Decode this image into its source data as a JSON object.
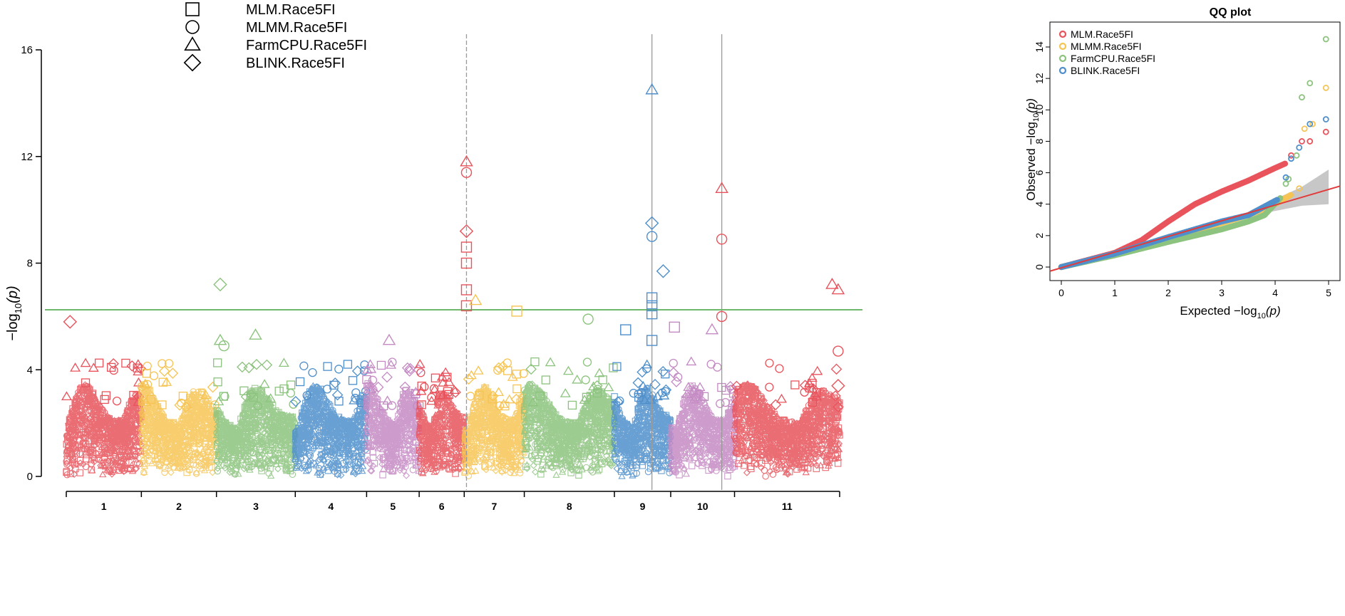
{
  "chart_data": [
    {
      "type": "scatter",
      "subtype": "manhattan",
      "title": "",
      "ylabel": "-log10(p)",
      "ylabel_main": "−log",
      "ylabel_sub": "10",
      "ylabel_end": "(p)",
      "xlabel": "",
      "ylim": [
        0,
        16
      ],
      "yticks": [
        "0",
        "4",
        "8",
        "12",
        "16"
      ],
      "ytick_values": [
        0,
        4,
        8,
        12,
        16
      ],
      "threshold": 6.25,
      "threshold_color": "#6DB86B",
      "chromosomes": [
        {
          "label": "1",
          "start": 0,
          "end": 1.0,
          "color": "#E8535C"
        },
        {
          "label": "2",
          "start": 1.0,
          "end": 2.0,
          "color": "#F6C453"
        },
        {
          "label": "3",
          "start": 2.0,
          "end": 3.05,
          "color": "#8CC37E"
        },
        {
          "label": "4",
          "start": 3.05,
          "end": 4.0,
          "color": "#4F8FCB"
        },
        {
          "label": "5",
          "start": 4.0,
          "end": 4.7,
          "color": "#C48AC3"
        },
        {
          "label": "6",
          "start": 4.7,
          "end": 5.3,
          "color": "#E8535C"
        },
        {
          "label": "7",
          "start": 5.3,
          "end": 6.1,
          "color": "#F6C453"
        },
        {
          "label": "8",
          "start": 6.1,
          "end": 7.3,
          "color": "#8CC37E"
        },
        {
          "label": "9",
          "start": 7.3,
          "end": 8.05,
          "color": "#4F8FCB"
        },
        {
          "label": "10",
          "start": 8.05,
          "end": 8.9,
          "color": "#C48AC3"
        },
        {
          "label": "11",
          "start": 8.9,
          "end": 10.3,
          "color": "#E8535C"
        }
      ],
      "vertical_lines": [
        {
          "x": 5.33,
          "style": "dashed"
        },
        {
          "x": 7.8,
          "style": "solid"
        },
        {
          "x": 8.73,
          "style": "solid"
        }
      ],
      "legend": [
        {
          "label": "MLM.Race5FI",
          "marker": "square"
        },
        {
          "label": "MLMM.Race5FI",
          "marker": "circle"
        },
        {
          "label": "FarmCPU.Race5FI",
          "marker": "triangle"
        },
        {
          "label": "BLINK.Race5FI",
          "marker": "diamond"
        }
      ],
      "highlight_points": [
        {
          "x": 0.05,
          "y": 5.8,
          "marker": "diamond",
          "color": "#E8535C"
        },
        {
          "x": 2.05,
          "y": 7.2,
          "marker": "diamond",
          "color": "#8CC37E"
        },
        {
          "x": 2.05,
          "y": 5.1,
          "marker": "triangle",
          "color": "#8CC37E"
        },
        {
          "x": 2.1,
          "y": 4.9,
          "marker": "circle",
          "color": "#8CC37E"
        },
        {
          "x": 2.52,
          "y": 5.3,
          "marker": "triangle",
          "color": "#8CC37E"
        },
        {
          "x": 4.3,
          "y": 5.1,
          "marker": "triangle",
          "color": "#C48AC3"
        },
        {
          "x": 5.33,
          "y": 11.8,
          "marker": "triangle",
          "color": "#E8535C"
        },
        {
          "x": 5.33,
          "y": 11.4,
          "marker": "circle",
          "color": "#E8535C"
        },
        {
          "x": 5.33,
          "y": 9.2,
          "marker": "diamond",
          "color": "#E8535C"
        },
        {
          "x": 5.33,
          "y": 8.6,
          "marker": "square",
          "color": "#E8535C"
        },
        {
          "x": 5.33,
          "y": 8.0,
          "marker": "square",
          "color": "#E8535C"
        },
        {
          "x": 5.33,
          "y": 7.0,
          "marker": "square",
          "color": "#E8535C"
        },
        {
          "x": 5.33,
          "y": 6.4,
          "marker": "square",
          "color": "#E8535C"
        },
        {
          "x": 5.45,
          "y": 6.6,
          "marker": "triangle",
          "color": "#F6C453"
        },
        {
          "x": 6.0,
          "y": 6.2,
          "marker": "square",
          "color": "#F6C453"
        },
        {
          "x": 6.95,
          "y": 5.9,
          "marker": "circle",
          "color": "#8CC37E"
        },
        {
          "x": 7.8,
          "y": 14.5,
          "marker": "triangle",
          "color": "#4F8FCB"
        },
        {
          "x": 7.8,
          "y": 9.5,
          "marker": "diamond",
          "color": "#4F8FCB"
        },
        {
          "x": 7.8,
          "y": 9.0,
          "marker": "circle",
          "color": "#4F8FCB"
        },
        {
          "x": 7.8,
          "y": 6.7,
          "marker": "square",
          "color": "#4F8FCB"
        },
        {
          "x": 7.8,
          "y": 6.4,
          "marker": "square",
          "color": "#4F8FCB"
        },
        {
          "x": 7.8,
          "y": 6.1,
          "marker": "square",
          "color": "#4F8FCB"
        },
        {
          "x": 7.8,
          "y": 5.1,
          "marker": "square",
          "color": "#4F8FCB"
        },
        {
          "x": 7.95,
          "y": 7.7,
          "marker": "diamond",
          "color": "#4F8FCB"
        },
        {
          "x": 7.45,
          "y": 5.5,
          "marker": "square",
          "color": "#4F8FCB"
        },
        {
          "x": 8.1,
          "y": 5.6,
          "marker": "square",
          "color": "#C48AC3"
        },
        {
          "x": 8.6,
          "y": 5.5,
          "marker": "triangle",
          "color": "#C48AC3"
        },
        {
          "x": 8.73,
          "y": 10.8,
          "marker": "triangle",
          "color": "#E8535C"
        },
        {
          "x": 8.73,
          "y": 8.9,
          "marker": "circle",
          "color": "#E8535C"
        },
        {
          "x": 8.73,
          "y": 6.0,
          "marker": "circle",
          "color": "#E8535C"
        },
        {
          "x": 10.2,
          "y": 7.2,
          "marker": "triangle",
          "color": "#E8535C"
        },
        {
          "x": 10.28,
          "y": 7.0,
          "marker": "triangle",
          "color": "#E8535C"
        },
        {
          "x": 10.28,
          "y": 4.7,
          "marker": "circle",
          "color": "#E8535C"
        },
        {
          "x": 10.28,
          "y": 3.4,
          "marker": "diamond",
          "color": "#E8535C"
        }
      ]
    },
    {
      "type": "scatter",
      "subtype": "qq",
      "title": "QQ plot",
      "xlabel": "Expected  −log",
      "ylabel": "Observed  −log",
      "label_sub": "10",
      "label_end": "(p)",
      "xlim": [
        0,
        5
      ],
      "ylim": [
        0,
        15
      ],
      "xticks": [
        "0",
        "1",
        "2",
        "3",
        "4",
        "5"
      ],
      "xtick_values": [
        0,
        1,
        2,
        3,
        4,
        5
      ],
      "yticks": [
        "0",
        "2",
        "4",
        "6",
        "8",
        "10",
        "12",
        "14"
      ],
      "ytick_values": [
        0,
        2,
        4,
        6,
        8,
        10,
        12,
        14
      ],
      "series": [
        {
          "name": "MLM.Race5FI",
          "color": "#E8535C",
          "curve": [
            [
              0,
              0
            ],
            [
              1,
              0.9
            ],
            [
              1.5,
              1.7
            ],
            [
              2,
              2.9
            ],
            [
              2.5,
              4.0
            ],
            [
              3,
              4.8
            ],
            [
              3.5,
              5.5
            ],
            [
              4,
              6.3
            ],
            [
              4.2,
              6.6
            ]
          ],
          "tail": [
            [
              4.3,
              7.1
            ],
            [
              4.5,
              8.0
            ],
            [
              4.65,
              8.0
            ],
            [
              4.95,
              8.6
            ]
          ]
        },
        {
          "name": "MLMM.Race5FI",
          "color": "#F6C453",
          "curve": [
            [
              0,
              0
            ],
            [
              1,
              0.8
            ],
            [
              2,
              1.8
            ],
            [
              3,
              2.8
            ],
            [
              3.5,
              3.3
            ],
            [
              4,
              4.0
            ],
            [
              4.3,
              4.6
            ]
          ],
          "tail": [
            [
              4.45,
              5.0
            ],
            [
              4.55,
              8.8
            ],
            [
              4.7,
              9.1
            ],
            [
              4.95,
              11.4
            ]
          ]
        },
        {
          "name": "FarmCPU.Race5FI",
          "color": "#8CC37E",
          "curve": [
            [
              0,
              0
            ],
            [
              1,
              0.75
            ],
            [
              2,
              1.6
            ],
            [
              3,
              2.4
            ],
            [
              3.5,
              2.9
            ],
            [
              3.8,
              3.3
            ],
            [
              4.1,
              4.4
            ]
          ],
          "tail": [
            [
              4.2,
              5.3
            ],
            [
              4.25,
              5.6
            ],
            [
              4.4,
              7.1
            ],
            [
              4.5,
              10.8
            ],
            [
              4.65,
              11.7
            ],
            [
              4.95,
              14.5
            ]
          ]
        },
        {
          "name": "BLINK.Race5FI",
          "color": "#4F8FCB",
          "curve": [
            [
              0,
              0
            ],
            [
              1,
              0.85
            ],
            [
              2,
              1.9
            ],
            [
              3,
              2.9
            ],
            [
              3.5,
              3.3
            ],
            [
              4.05,
              4.3
            ]
          ],
          "tail": [
            [
              4.2,
              5.7
            ],
            [
              4.3,
              6.9
            ],
            [
              4.45,
              7.6
            ],
            [
              4.65,
              9.1
            ],
            [
              4.95,
              9.4
            ]
          ]
        }
      ],
      "reference_line_color": "#E23B3B",
      "band_color": "#BDBDBD"
    }
  ]
}
